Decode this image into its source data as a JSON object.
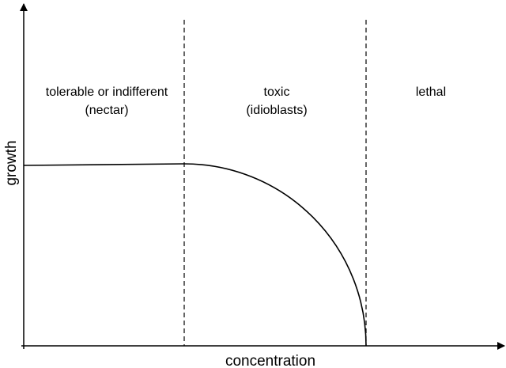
{
  "axes": {
    "x_label": "concentration",
    "y_label": "growth"
  },
  "zones": [
    {
      "lines": [
        "tolerable or indifferent",
        "(nectar)"
      ]
    },
    {
      "lines": [
        "toxic",
        "(idioblasts)"
      ]
    },
    {
      "lines": [
        "lethal"
      ]
    }
  ]
}
